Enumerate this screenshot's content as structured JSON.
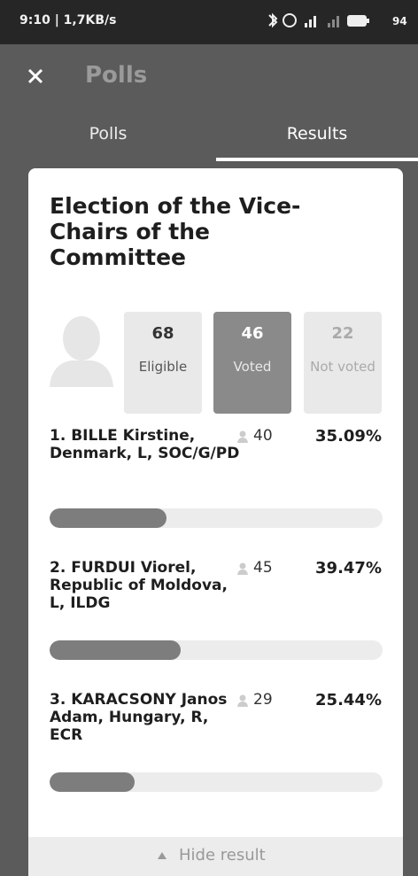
{
  "status_bar": {
    "time_speed": "9:10 | 1,7KB/s",
    "battery": "94"
  },
  "header": {
    "title": "Polls"
  },
  "tabs": [
    "Polls",
    "Results"
  ],
  "poll": {
    "title": "Election of the Vice-Chairs of the Committee",
    "stats": [
      {
        "value": 68,
        "label": "Eligible"
      },
      {
        "value": 46,
        "label": "Voted"
      },
      {
        "value": 22,
        "label": "Not voted"
      }
    ],
    "candidates": [
      {
        "name": "1. BILLE Kirstine, Denmark, L, SOC/G/PD",
        "votes": 40,
        "percent": 35.09,
        "percent_label": "35.09%"
      },
      {
        "name": "2. FURDUI Viorel, Republic of Moldova, L, ILDG",
        "votes": 45,
        "percent": 39.47,
        "percent_label": "39.47%"
      },
      {
        "name": "3. KARACSONY Janos Adam, Hungary, R, ECR",
        "votes": 29,
        "percent": 25.44,
        "percent_label": "25.44%"
      }
    ]
  },
  "footer": {
    "button": "Hide result"
  }
}
